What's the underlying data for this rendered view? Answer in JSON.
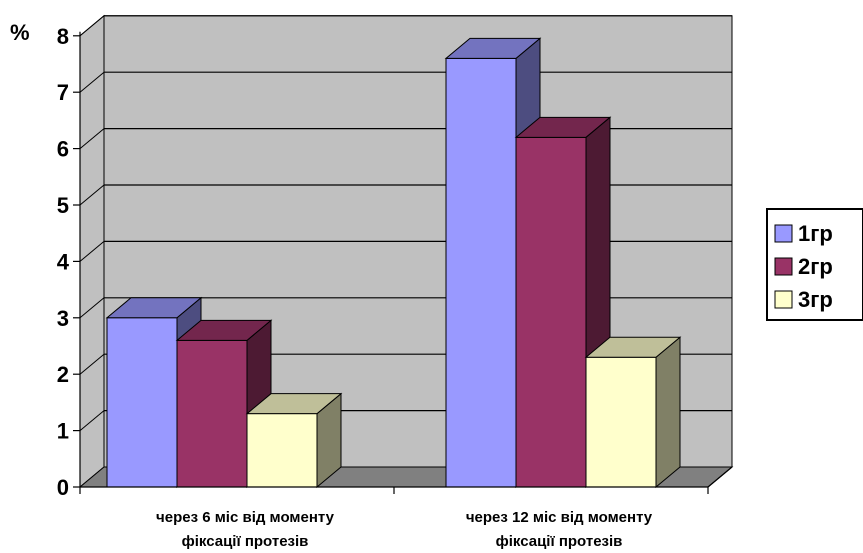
{
  "chart_data": {
    "type": "bar",
    "title": "",
    "ylabel": "%",
    "xlabel": "",
    "ylim": [
      0,
      8
    ],
    "yticks": [
      "0",
      "1",
      "2",
      "3",
      "4",
      "5",
      "6",
      "7",
      "8"
    ],
    "grid": true,
    "legend_position": "right",
    "categories": [
      [
        "через 6 міс від моменту",
        "фіксації протезів"
      ],
      [
        "через 12 міс від моменту",
        "фіксації протезів"
      ]
    ],
    "series": [
      {
        "name": "1гр",
        "values": [
          3.0,
          7.6
        ],
        "color": "#9999ff"
      },
      {
        "name": "2гр",
        "values": [
          2.6,
          6.2
        ],
        "color": "#993366"
      },
      {
        "name": "3гр",
        "values": [
          1.3,
          2.3
        ],
        "color": "#ffffcc"
      }
    ]
  }
}
